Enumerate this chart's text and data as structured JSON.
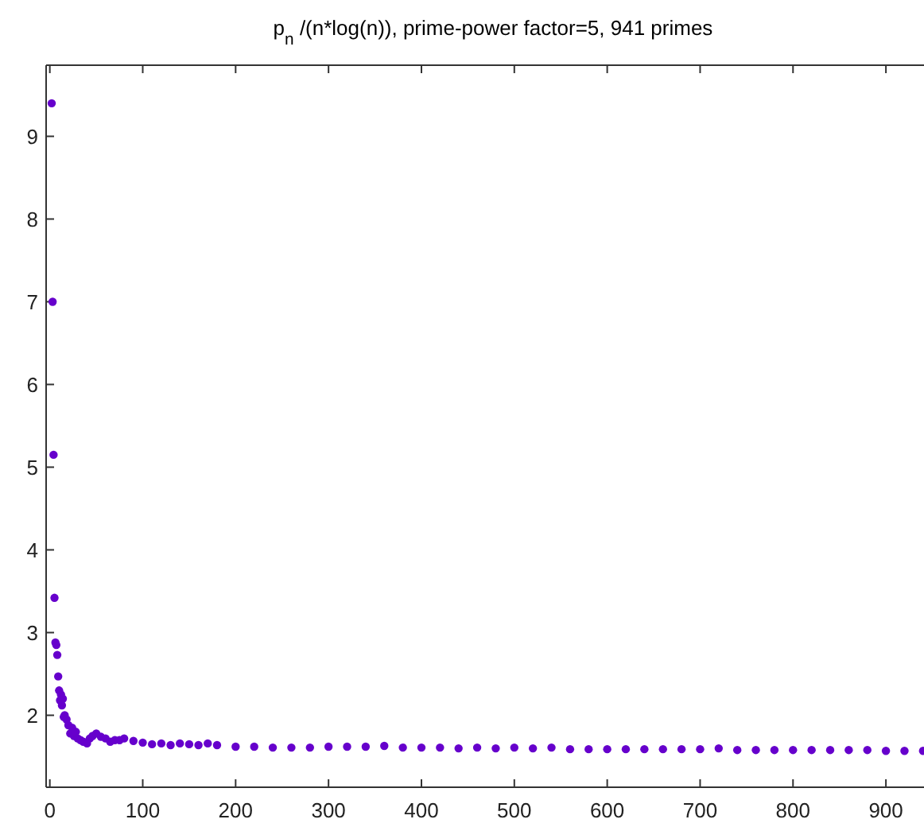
{
  "chart_data": {
    "type": "scatter",
    "title": "p$_{n}$/(n*log(n)), prime-power factor=5, 941 primes",
    "marker": "circle",
    "grid": false,
    "xlim": [
      -4,
      941
    ],
    "ylim": [
      1.13,
      9.86
    ],
    "xticks": [
      0,
      100,
      200,
      300,
      400,
      500,
      600,
      700,
      800,
      900
    ],
    "yticks": [
      2,
      3,
      4,
      5,
      6,
      7,
      8,
      9
    ],
    "series": [
      {
        "color": "#6600cc",
        "x": [
          2,
          3,
          4,
          5,
          6,
          7,
          8,
          9,
          10,
          11,
          12,
          13,
          14,
          15,
          16,
          18,
          20,
          22,
          24,
          26,
          28,
          30,
          33,
          36,
          40,
          43,
          46,
          50,
          55,
          60,
          65,
          70,
          75,
          80,
          90,
          100,
          110,
          120,
          130,
          140,
          150,
          160,
          170,
          180,
          200,
          220,
          240,
          260,
          280,
          300,
          320,
          340,
          360,
          380,
          400,
          420,
          440,
          460,
          480,
          500,
          520,
          540,
          560,
          580,
          600,
          620,
          640,
          660,
          680,
          700,
          720,
          740,
          760,
          780,
          800,
          820,
          840,
          860,
          880,
          900,
          920,
          940
        ],
        "values": [
          9.4,
          7.0,
          5.15,
          3.42,
          2.88,
          2.85,
          2.73,
          2.47,
          2.3,
          2.18,
          2.25,
          2.12,
          2.2,
          1.98,
          2.0,
          1.95,
          1.88,
          1.78,
          1.85,
          1.75,
          1.8,
          1.72,
          1.7,
          1.68,
          1.66,
          1.72,
          1.75,
          1.78,
          1.74,
          1.72,
          1.68,
          1.7,
          1.7,
          1.72,
          1.69,
          1.67,
          1.65,
          1.66,
          1.64,
          1.66,
          1.65,
          1.64,
          1.66,
          1.64,
          1.62,
          1.62,
          1.61,
          1.61,
          1.61,
          1.62,
          1.62,
          1.62,
          1.63,
          1.61,
          1.61,
          1.61,
          1.6,
          1.61,
          1.6,
          1.61,
          1.6,
          1.61,
          1.59,
          1.59,
          1.59,
          1.59,
          1.59,
          1.59,
          1.59,
          1.59,
          1.6,
          1.58,
          1.58,
          1.58,
          1.58,
          1.58,
          1.58,
          1.58,
          1.58,
          1.57,
          1.57,
          1.57
        ]
      }
    ]
  }
}
